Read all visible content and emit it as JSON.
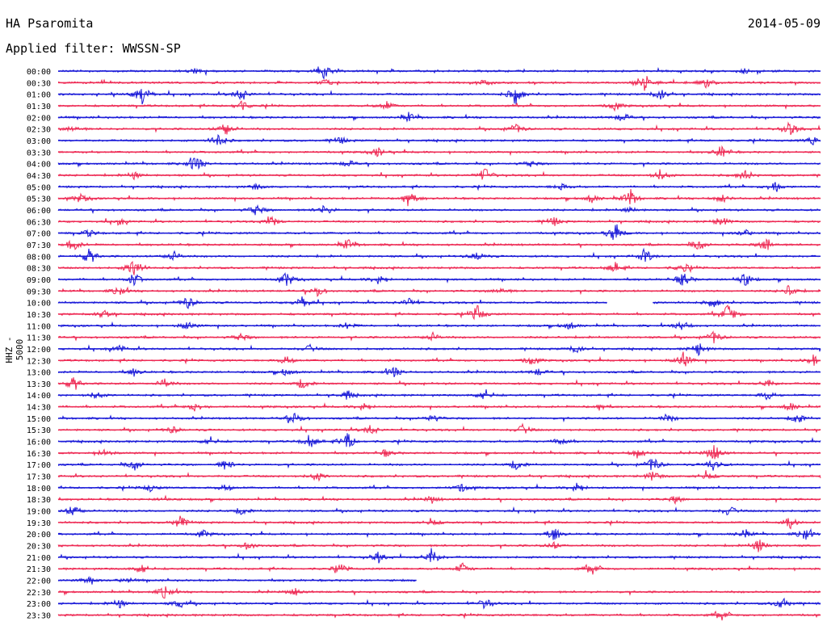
{
  "header": {
    "station": "HA Psaromita",
    "date": "2014-05-09",
    "filter": "Applied filter: WWSSN-SP"
  },
  "chart_data": {
    "type": "line",
    "title": "HA Psaromita",
    "ylabel": "HHZ - 5000",
    "colors": {
      "even": "#1a1ad8",
      "odd": "#ee2b55"
    },
    "rows": [
      {
        "label": "00:00",
        "end": 1.0,
        "events": [
          [
            0.35,
            1.0
          ],
          [
            0.18,
            0.3
          ],
          [
            0.9,
            0.3
          ]
        ]
      },
      {
        "label": "00:30",
        "end": 1.0,
        "events": [
          [
            0.35,
            0.3
          ],
          [
            0.56,
            0.4
          ],
          [
            0.77,
            1.0
          ],
          [
            0.85,
            0.5
          ]
        ]
      },
      {
        "label": "01:00",
        "end": 1.0,
        "events": [
          [
            0.11,
            1.2
          ],
          [
            0.24,
            0.8
          ],
          [
            0.6,
            1.1
          ],
          [
            0.79,
            0.7
          ]
        ]
      },
      {
        "label": "01:30",
        "end": 1.0,
        "events": [
          [
            0.24,
            0.6
          ],
          [
            0.43,
            0.5
          ],
          [
            0.73,
            0.5
          ]
        ]
      },
      {
        "label": "02:00",
        "end": 1.0,
        "events": [
          [
            0.46,
            0.5
          ],
          [
            0.74,
            0.5
          ]
        ]
      },
      {
        "label": "02:30",
        "end": 1.0,
        "events": [
          [
            0.02,
            0.5
          ],
          [
            0.22,
            0.8
          ],
          [
            0.6,
            0.6
          ],
          [
            0.96,
            0.8
          ]
        ]
      },
      {
        "label": "03:00",
        "end": 1.0,
        "events": [
          [
            0.21,
            0.8
          ],
          [
            0.37,
            0.4
          ],
          [
            0.99,
            0.5
          ]
        ]
      },
      {
        "label": "03:30",
        "end": 1.0,
        "events": [
          [
            0.42,
            0.5
          ],
          [
            0.87,
            0.8
          ]
        ]
      },
      {
        "label": "04:00",
        "end": 1.0,
        "events": [
          [
            0.18,
            1.0
          ],
          [
            0.38,
            0.4
          ],
          [
            0.62,
            0.3
          ]
        ]
      },
      {
        "label": "04:30",
        "end": 1.0,
        "events": [
          [
            0.1,
            0.4
          ],
          [
            0.56,
            0.8
          ],
          [
            0.79,
            0.6
          ],
          [
            0.9,
            0.6
          ]
        ]
      },
      {
        "label": "05:00",
        "end": 1.0,
        "events": [
          [
            0.26,
            0.3
          ],
          [
            0.66,
            0.4
          ],
          [
            0.94,
            0.7
          ]
        ]
      },
      {
        "label": "05:30",
        "end": 1.0,
        "events": [
          [
            0.03,
            0.5
          ],
          [
            0.46,
            1.0
          ],
          [
            0.7,
            0.5
          ],
          [
            0.75,
            1.0
          ],
          [
            0.87,
            0.5
          ]
        ]
      },
      {
        "label": "06:00",
        "end": 1.0,
        "events": [
          [
            0.26,
            0.6
          ],
          [
            0.35,
            0.6
          ],
          [
            0.75,
            0.3
          ]
        ]
      },
      {
        "label": "06:30",
        "end": 1.0,
        "events": [
          [
            0.08,
            0.4
          ],
          [
            0.28,
            0.6
          ],
          [
            0.65,
            0.5
          ],
          [
            0.87,
            0.6
          ]
        ]
      },
      {
        "label": "07:00",
        "end": 1.0,
        "events": [
          [
            0.04,
            0.4
          ],
          [
            0.73,
            1.0
          ],
          [
            0.9,
            0.4
          ]
        ]
      },
      {
        "label": "07:30",
        "end": 1.0,
        "events": [
          [
            0.02,
            0.7
          ],
          [
            0.38,
            0.6
          ],
          [
            0.84,
            0.6
          ],
          [
            0.93,
            0.8
          ]
        ]
      },
      {
        "label": "08:00",
        "end": 1.0,
        "events": [
          [
            0.04,
            0.8
          ],
          [
            0.15,
            0.6
          ],
          [
            0.55,
            0.5
          ],
          [
            0.77,
            0.8
          ]
        ]
      },
      {
        "label": "08:30",
        "end": 1.0,
        "events": [
          [
            0.1,
            1.3
          ],
          [
            0.73,
            0.6
          ],
          [
            0.82,
            0.5
          ]
        ]
      },
      {
        "label": "09:00",
        "end": 1.0,
        "events": [
          [
            0.1,
            0.7
          ],
          [
            0.3,
            0.8
          ],
          [
            0.42,
            0.6
          ],
          [
            0.82,
            0.8
          ],
          [
            0.9,
            0.9
          ]
        ]
      },
      {
        "label": "09:30",
        "end": 1.0,
        "events": [
          [
            0.08,
            0.5
          ],
          [
            0.34,
            0.6
          ],
          [
            0.58,
            0.5
          ],
          [
            0.96,
            0.7
          ]
        ]
      },
      {
        "label": "10:00",
        "end": 0.72,
        "resume": 0.78,
        "events": [
          [
            0.17,
            0.7
          ],
          [
            0.32,
            0.6
          ],
          [
            0.46,
            0.5
          ],
          [
            0.86,
            0.5
          ]
        ]
      },
      {
        "label": "10:30",
        "end": 1.0,
        "events": [
          [
            0.06,
            0.6
          ],
          [
            0.55,
            0.9
          ],
          [
            0.88,
            1.2
          ]
        ]
      },
      {
        "label": "11:00",
        "end": 1.0,
        "events": [
          [
            0.17,
            0.5
          ],
          [
            0.38,
            0.4
          ],
          [
            0.67,
            0.5
          ],
          [
            0.82,
            0.6
          ]
        ]
      },
      {
        "label": "11:30",
        "end": 1.0,
        "events": [
          [
            0.24,
            0.4
          ],
          [
            0.49,
            0.5
          ],
          [
            0.86,
            0.7
          ]
        ]
      },
      {
        "label": "12:00",
        "end": 1.0,
        "events": [
          [
            0.08,
            0.4
          ],
          [
            0.33,
            0.4
          ],
          [
            0.68,
            0.5
          ],
          [
            0.84,
            0.7
          ]
        ]
      },
      {
        "label": "12:30",
        "end": 1.0,
        "events": [
          [
            0.3,
            0.5
          ],
          [
            0.62,
            0.6
          ],
          [
            0.82,
            0.9
          ],
          [
            0.99,
            0.6
          ]
        ]
      },
      {
        "label": "13:00",
        "end": 1.0,
        "events": [
          [
            0.1,
            0.4
          ],
          [
            0.3,
            0.5
          ],
          [
            0.44,
            0.6
          ],
          [
            0.63,
            0.4
          ]
        ]
      },
      {
        "label": "13:30",
        "end": 1.0,
        "events": [
          [
            0.02,
            0.7
          ],
          [
            0.14,
            0.5
          ],
          [
            0.32,
            0.6
          ],
          [
            0.93,
            0.5
          ]
        ]
      },
      {
        "label": "14:00",
        "end": 1.0,
        "events": [
          [
            0.05,
            0.4
          ],
          [
            0.38,
            0.5
          ],
          [
            0.56,
            0.7
          ],
          [
            0.93,
            0.5
          ]
        ]
      },
      {
        "label": "14:30",
        "end": 1.0,
        "events": [
          [
            0.18,
            0.5
          ],
          [
            0.4,
            0.5
          ],
          [
            0.71,
            0.4
          ],
          [
            0.96,
            0.5
          ]
        ]
      },
      {
        "label": "15:00",
        "end": 1.0,
        "events": [
          [
            0.31,
            0.8
          ],
          [
            0.49,
            0.5
          ],
          [
            0.8,
            0.5
          ],
          [
            0.97,
            0.6
          ]
        ]
      },
      {
        "label": "15:30",
        "end": 1.0,
        "events": [
          [
            0.15,
            0.4
          ],
          [
            0.41,
            0.6
          ],
          [
            0.61,
            0.6
          ]
        ]
      },
      {
        "label": "16:00",
        "end": 1.0,
        "events": [
          [
            0.2,
            0.5
          ],
          [
            0.33,
            0.8
          ],
          [
            0.38,
            0.9
          ],
          [
            0.66,
            0.5
          ]
        ]
      },
      {
        "label": "16:30",
        "end": 1.0,
        "events": [
          [
            0.06,
            0.4
          ],
          [
            0.43,
            0.4
          ],
          [
            0.76,
            0.6
          ],
          [
            0.86,
            1.0
          ]
        ]
      },
      {
        "label": "17:00",
        "end": 1.0,
        "events": [
          [
            0.1,
            0.6
          ],
          [
            0.22,
            0.6
          ],
          [
            0.6,
            0.6
          ],
          [
            0.78,
            0.9
          ],
          [
            0.86,
            0.8
          ]
        ]
      },
      {
        "label": "17:30",
        "end": 1.0,
        "events": [
          [
            0.34,
            0.5
          ],
          [
            0.78,
            0.6
          ],
          [
            0.85,
            0.6
          ]
        ]
      },
      {
        "label": "18:00",
        "end": 1.0,
        "events": [
          [
            0.12,
            0.4
          ],
          [
            0.22,
            0.4
          ],
          [
            0.53,
            0.5
          ],
          [
            0.68,
            0.6
          ]
        ]
      },
      {
        "label": "18:30",
        "end": 1.0,
        "events": [
          [
            0.14,
            0.3
          ],
          [
            0.49,
            0.4
          ],
          [
            0.81,
            0.4
          ]
        ]
      },
      {
        "label": "19:00",
        "end": 1.0,
        "events": [
          [
            0.02,
            0.7
          ],
          [
            0.24,
            0.4
          ],
          [
            0.88,
            0.6
          ]
        ]
      },
      {
        "label": "19:30",
        "end": 1.0,
        "events": [
          [
            0.16,
            0.7
          ],
          [
            0.49,
            0.5
          ],
          [
            0.96,
            0.7
          ]
        ]
      },
      {
        "label": "20:00",
        "end": 1.0,
        "events": [
          [
            0.19,
            0.4
          ],
          [
            0.65,
            0.8
          ],
          [
            0.9,
            0.5
          ],
          [
            0.98,
            0.7
          ]
        ]
      },
      {
        "label": "20:30",
        "end": 1.0,
        "events": [
          [
            0.25,
            0.5
          ],
          [
            0.65,
            0.4
          ],
          [
            0.92,
            0.8
          ]
        ]
      },
      {
        "label": "21:00",
        "end": 1.0,
        "events": [
          [
            0.42,
            0.6
          ],
          [
            0.49,
            1.0
          ]
        ]
      },
      {
        "label": "21:30",
        "end": 1.0,
        "events": [
          [
            0.11,
            0.6
          ],
          [
            0.37,
            0.5
          ],
          [
            0.53,
            0.6
          ],
          [
            0.7,
            0.6
          ]
        ]
      },
      {
        "label": "22:00",
        "end": 0.47,
        "events": [
          [
            0.04,
            0.4
          ],
          [
            0.09,
            0.3
          ]
        ]
      },
      {
        "label": "22:30",
        "end": 1.0,
        "events": [
          [
            0.14,
            0.7
          ],
          [
            0.31,
            0.4
          ]
        ]
      },
      {
        "label": "23:00",
        "end": 1.0,
        "events": [
          [
            0.08,
            0.5
          ],
          [
            0.16,
            0.5
          ],
          [
            0.56,
            0.6
          ],
          [
            0.95,
            0.7
          ]
        ]
      },
      {
        "label": "23:30",
        "end": 1.0,
        "events": [
          [
            0.87,
            0.5
          ]
        ]
      }
    ]
  }
}
